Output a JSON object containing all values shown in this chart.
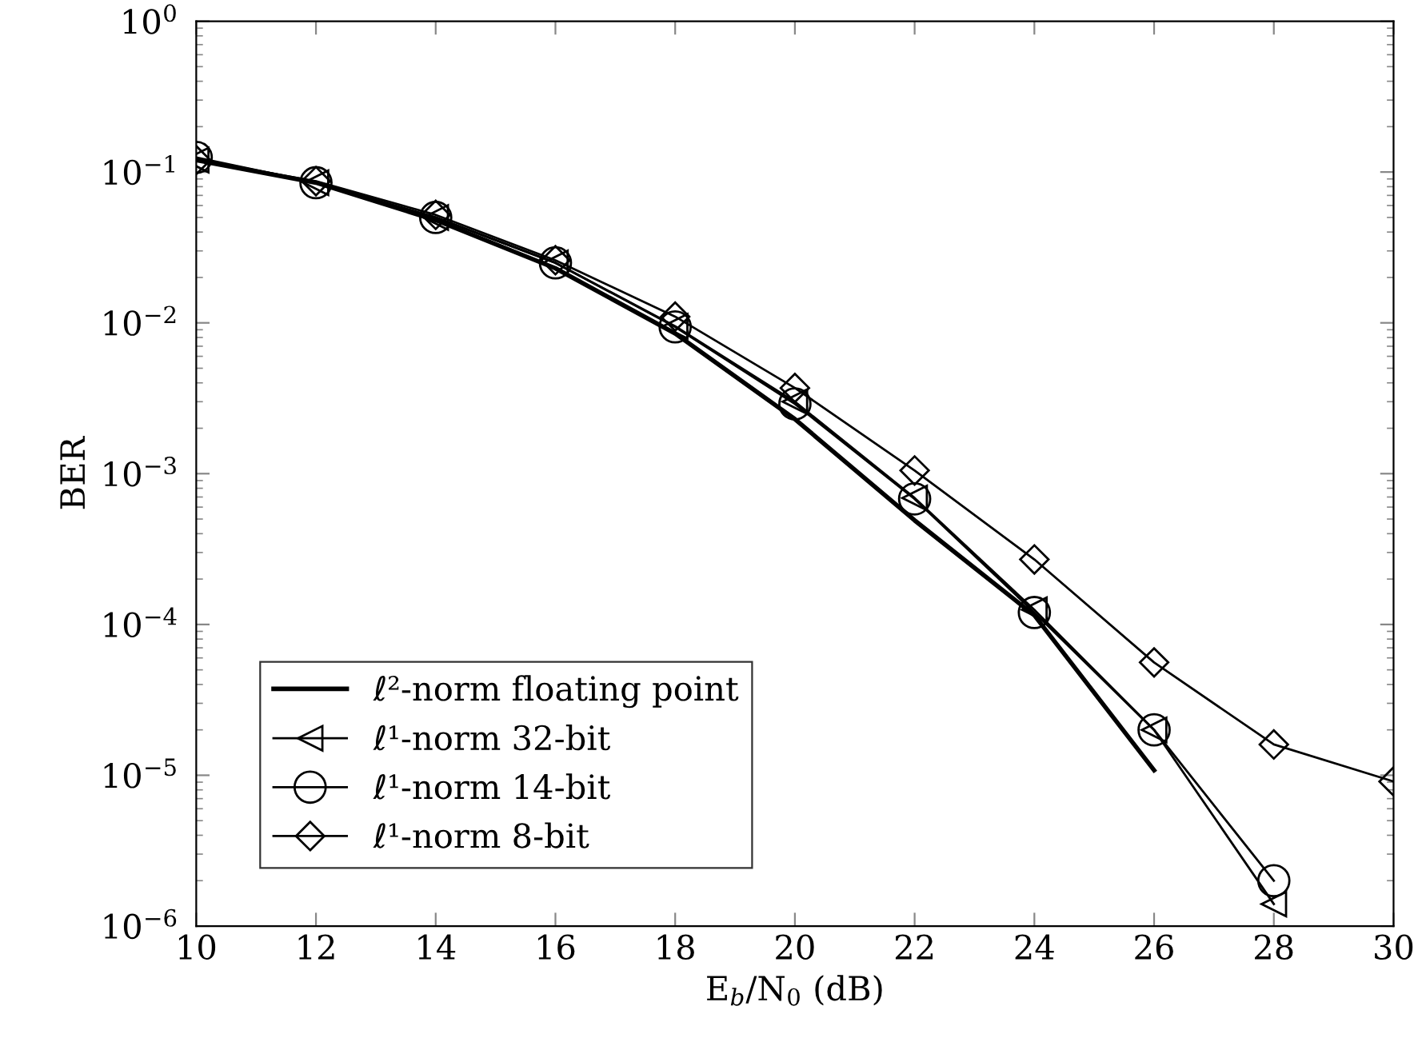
{
  "chart_data": {
    "type": "line",
    "xlabel": "E$_{b}$/N$_{0}$ (dB)",
    "ylabel": "BER",
    "log": "y",
    "xlim": [
      10,
      30
    ],
    "xticks": [
      10,
      12,
      14,
      16,
      18,
      20,
      22,
      24,
      26,
      28,
      30
    ],
    "ylim": [
      1e-06,
      1
    ],
    "yticks": [
      {
        "value": 1e-06,
        "label": "10$^{−6}$"
      },
      {
        "value": 1e-05,
        "label": "10$^{−5}$"
      },
      {
        "value": 0.0001,
        "label": "10$^{−4}$"
      },
      {
        "value": 0.001,
        "label": "10$^{−3}$"
      },
      {
        "value": 0.01,
        "label": "10$^{−2}$"
      },
      {
        "value": 0.1,
        "label": "10$^{−1}$"
      },
      {
        "value": 1,
        "label": "10$^{0}$"
      }
    ],
    "grid": false,
    "legend": "bottom left",
    "series": [
      {
        "name": "ℓ²-norm floating point",
        "color": "#000000",
        "marker": "none",
        "x": [
          10,
          12,
          14,
          16,
          18,
          20,
          22,
          24,
          26
        ],
        "values": [
          0.12,
          0.085,
          0.048,
          0.023,
          0.0085,
          0.0023,
          0.00049,
          0.000115,
          1.08e-05
        ]
      },
      {
        "name": "ℓ¹-norm 32-bit",
        "color": "#000000",
        "marker": "triangle",
        "x": [
          10,
          12,
          14,
          16,
          18,
          20,
          22,
          24,
          26,
          28
        ],
        "values": [
          0.12,
          0.085,
          0.05,
          0.025,
          0.0095,
          0.003,
          0.00069,
          0.000125,
          2e-05,
          1.4e-06
        ]
      },
      {
        "name": "ℓ¹-norm 14-bit",
        "color": "#000000",
        "marker": "circle",
        "x": [
          10,
          12,
          14,
          16,
          18,
          20,
          22,
          24,
          26,
          28
        ],
        "values": [
          0.125,
          0.085,
          0.05,
          0.025,
          0.0094,
          0.0029,
          0.00068,
          0.00012,
          2e-05,
          2e-06
        ]
      },
      {
        "name": "ℓ¹-norm 8-bit",
        "color": "#000000",
        "marker": "diamond",
        "x": [
          10,
          12,
          14,
          16,
          18,
          20,
          22,
          24,
          26,
          28,
          30
        ],
        "values": [
          0.12,
          0.087,
          0.052,
          0.026,
          0.011,
          0.0037,
          0.00105,
          0.00027,
          5.6e-05,
          1.6e-05,
          9.1e-06
        ]
      }
    ]
  }
}
